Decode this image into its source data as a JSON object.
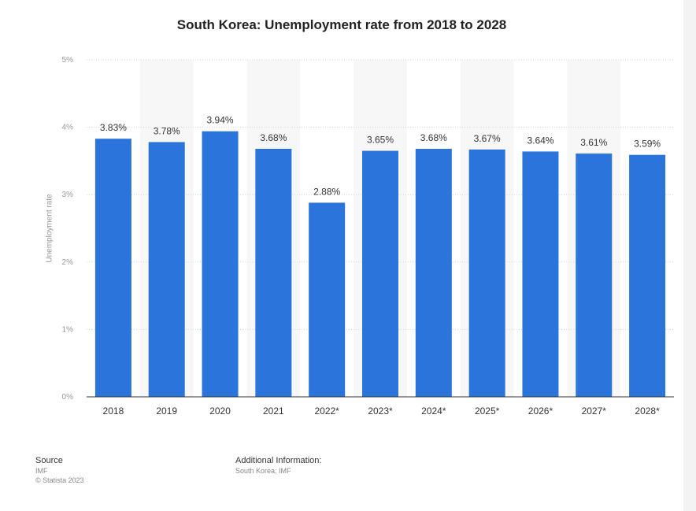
{
  "chart_data": {
    "type": "bar",
    "title": "South Korea: Unemployment rate from 2018 to 2028",
    "ylabel": "Unemployment rate",
    "xlabel": "",
    "categories": [
      "2018",
      "2019",
      "2020",
      "2021",
      "2022*",
      "2023*",
      "2024*",
      "2025*",
      "2026*",
      "2027*",
      "2028*"
    ],
    "values": [
      3.83,
      3.78,
      3.94,
      3.68,
      2.88,
      3.65,
      3.68,
      3.67,
      3.64,
      3.61,
      3.59
    ],
    "value_labels": [
      "3.83%",
      "3.78%",
      "3.94%",
      "3.68%",
      "2.88%",
      "3.65%",
      "3.68%",
      "3.67%",
      "3.64%",
      "3.61%",
      "3.59%"
    ],
    "ylim": [
      0,
      5
    ],
    "yticks": [
      "0%",
      "1%",
      "2%",
      "3%",
      "4%",
      "5%"
    ],
    "grid": true,
    "colors": {
      "bar": "#2a74db",
      "band": "#f7f7f7",
      "grid": "#d5d5d5"
    }
  },
  "footer": {
    "source_heading": "Source",
    "source_name": "IMF",
    "copyright": "© Statista 2023",
    "additional_heading": "Additional Information:",
    "additional_text": "South Korea; IMF"
  }
}
